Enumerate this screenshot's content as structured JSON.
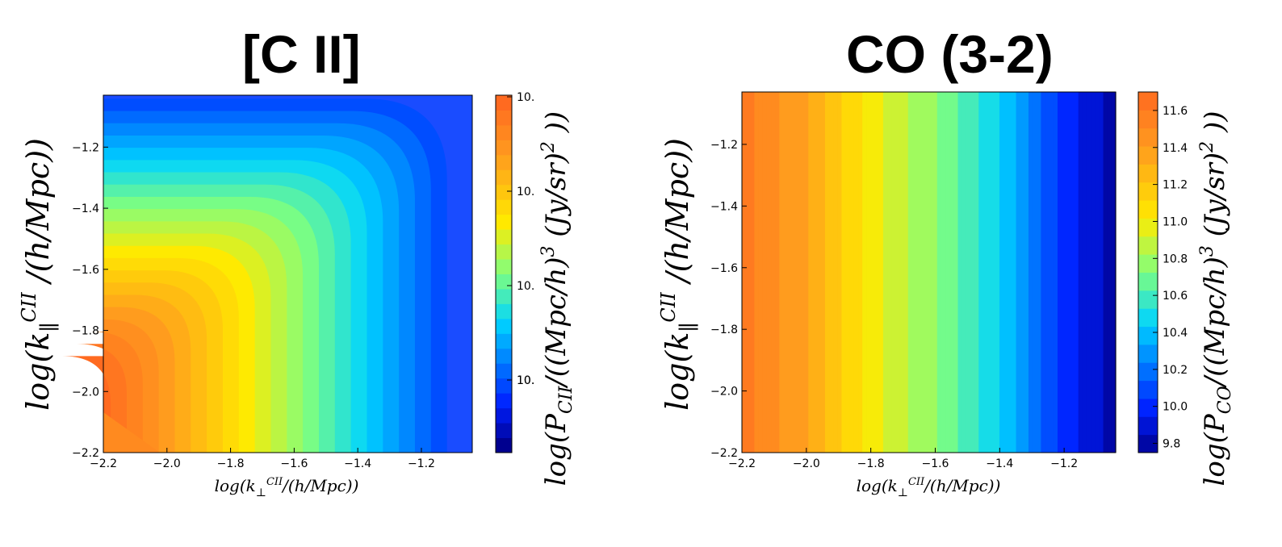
{
  "figure": {
    "panels": [
      {
        "title": "[C II]"
      },
      {
        "title": "CO (3-2)"
      }
    ]
  },
  "chart_data": [
    {
      "type": "heatmap",
      "title": "[C II]",
      "xlabel": "log(k⊥^CII/(h/Mpc))",
      "ylabel": "log(k∥^CII/(h/Mpc))",
      "colorbar_label": "log(P_CII/((Mpc/h)^3 (Jy/sr)^2))",
      "xlim": [
        -2.2,
        -1.04
      ],
      "ylim": [
        -2.2,
        -1.03
      ],
      "x_ticks": [
        "−2.2",
        "−2.0",
        "−1.8",
        "−1.6",
        "−1.4",
        "−1.2"
      ],
      "y_ticks": [
        "−2.2",
        "−2.0",
        "−1.8",
        "−1.6",
        "−1.4",
        "−1.2"
      ],
      "colorbar_ticks": [
        "10.",
        "10.",
        "10.",
        "10.",
        "10."
      ],
      "colormap": "jet",
      "description_points": [
        {
          "x": -2.0,
          "y": -2.0,
          "level": 0.92
        },
        {
          "x": -1.6,
          "y": -1.6,
          "level": 0.65
        },
        {
          "x": -1.2,
          "y": -1.2,
          "level": 0.3
        }
      ]
    },
    {
      "type": "heatmap",
      "title": "CO (3-2)",
      "xlabel": "log(k⊥^CII/(h/Mpc))",
      "ylabel": "log(k∥^CII/(h/Mpc))",
      "colorbar_label": "log(P_CO/((Mpc/h)^3 (Jy/sr)^2))",
      "xlim": [
        -2.2,
        -1.04
      ],
      "ylim": [
        -2.2,
        -1.03
      ],
      "x_ticks": [
        "−2.2",
        "−2.0",
        "−1.8",
        "−1.6",
        "−1.4",
        "−1.2"
      ],
      "y_ticks": [
        "−2.2",
        "−2.0",
        "−1.8",
        "−1.6",
        "−1.4",
        "−1.2"
      ],
      "colorbar_ticks": [
        "11.6",
        "11.4",
        "11.2",
        "11.0",
        "10.8",
        "10.6",
        "10.4",
        "10.2",
        "10.0",
        "9.8"
      ],
      "colorbar_range": [
        9.75,
        11.7
      ],
      "colormap": "jet",
      "values_along_x": [
        {
          "x": -2.2,
          "value": 11.6
        },
        {
          "x": -2.0,
          "value": 11.35
        },
        {
          "x": -1.8,
          "value": 11.0
        },
        {
          "x": -1.6,
          "value": 10.75
        },
        {
          "x": -1.4,
          "value": 10.45
        },
        {
          "x": -1.2,
          "value": 10.0
        },
        {
          "x": -1.04,
          "value": 9.8
        }
      ]
    }
  ]
}
